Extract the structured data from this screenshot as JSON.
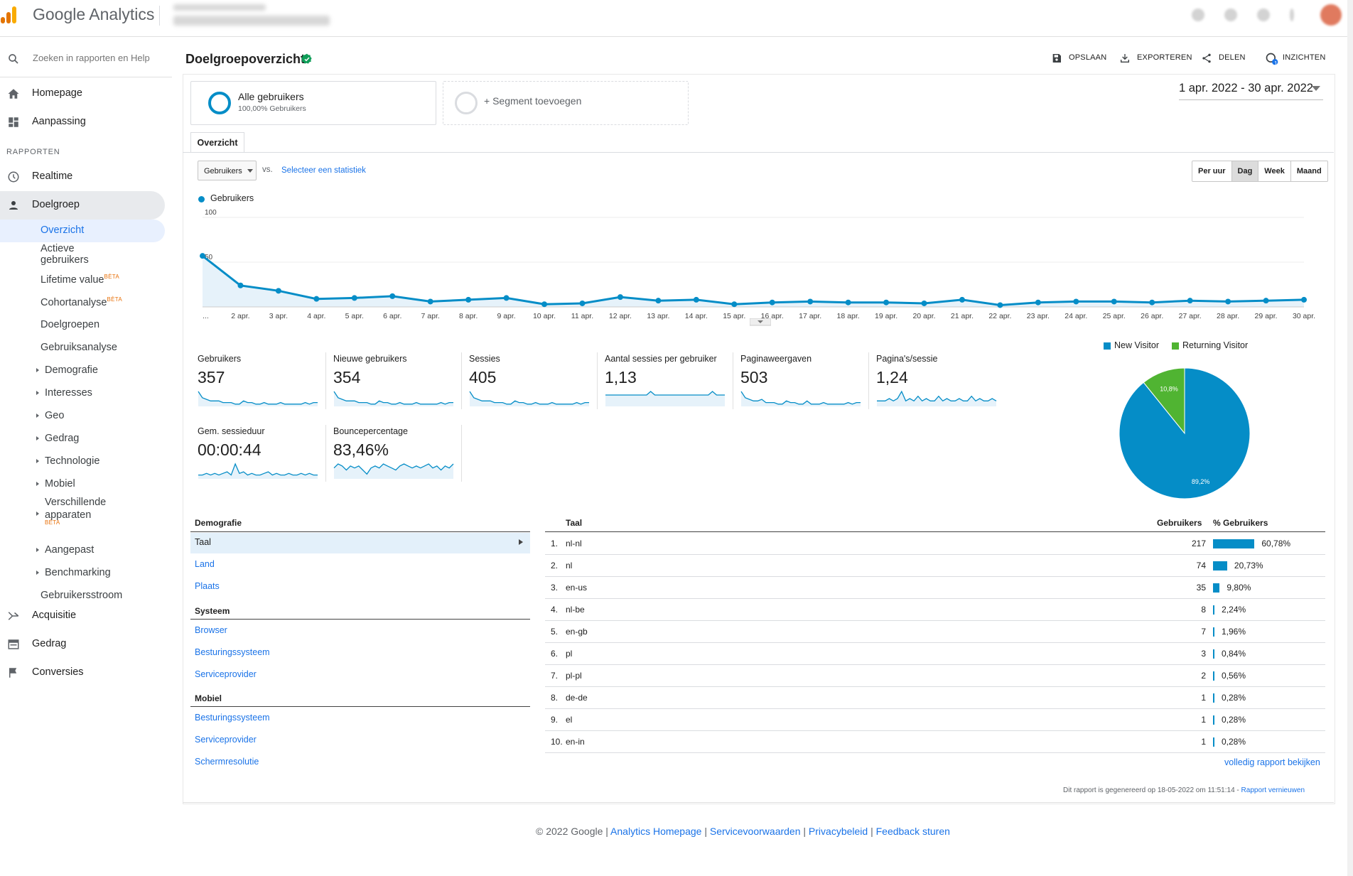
{
  "app": {
    "title": "Google Analytics"
  },
  "search": {
    "placeholder": "Zoeken in rapporten en Help"
  },
  "sidebar": {
    "top": [
      {
        "label": "Homepage",
        "icon": "home-icon"
      },
      {
        "label": "Aanpassing",
        "icon": "dashboard-icon"
      }
    ],
    "section_label": "RAPPORTEN",
    "reports": [
      {
        "label": "Realtime",
        "icon": "clock-icon"
      },
      {
        "label": "Doelgroep",
        "icon": "person-icon"
      }
    ],
    "audience_sub": [
      {
        "label": "Overzicht"
      },
      {
        "label": "Actieve",
        "label2": "gebruikers"
      },
      {
        "label": "Lifetime value",
        "badge": "BÈTA"
      },
      {
        "label": "Cohortanalyse",
        "badge": "BÈTA"
      },
      {
        "label": "Doelgroepen"
      },
      {
        "label": "Gebruiksanalyse"
      },
      {
        "label": "Demografie"
      },
      {
        "label": "Interesses"
      },
      {
        "label": "Geo"
      },
      {
        "label": "Gedrag"
      },
      {
        "label": "Technologie"
      },
      {
        "label": "Mobiel"
      },
      {
        "label": "Verschillende",
        "label2": "apparaten",
        "badge": "BÈTA"
      },
      {
        "label": "Aangepast"
      },
      {
        "label": "Benchmarking"
      },
      {
        "label": "Gebruikersstroom"
      }
    ],
    "bottom": [
      {
        "label": "Acquisitie",
        "icon": "acquisition-icon"
      },
      {
        "label": "Gedrag",
        "icon": "behavior-icon"
      },
      {
        "label": "Conversies",
        "icon": "flag-icon"
      }
    ]
  },
  "header": {
    "title": "Doelgroepoverzicht",
    "save": "OPSLAAN",
    "export": "EXPORTEREN",
    "share": "DELEN",
    "insights": "INZICHTEN",
    "insights_count": "1"
  },
  "segments": {
    "segment1_name": "Alle gebruikers",
    "segment1_sub": "100,00% Gebruikers",
    "add_segment": "+ Segment toevoegen"
  },
  "date_range": "1 apr. 2022 - 30 apr. 2022",
  "tabs": {
    "overview": "Overzicht"
  },
  "chart_controls": {
    "metric": "Gebruikers",
    "vs": "vs.",
    "select_metric": "Selecteer een statistiek",
    "granularity": [
      "Per uur",
      "Dag",
      "Week",
      "Maand"
    ],
    "selected": "Dag"
  },
  "colors": {
    "accent": "#058dc7",
    "returning": "#50b432",
    "link": "#1a73e8"
  },
  "chart_data": [
    {
      "type": "line",
      "series": [
        {
          "name": "Gebruikers",
          "values": [
            57,
            24,
            18,
            9,
            10,
            12,
            6,
            8,
            10,
            3,
            4,
            11,
            7,
            8,
            3,
            5,
            6,
            5,
            5,
            4,
            8,
            2,
            5,
            6,
            6,
            5,
            7,
            6,
            7,
            8
          ]
        }
      ],
      "x_labels": [
        "...",
        "2 apr.",
        "3 apr.",
        "4 apr.",
        "5 apr.",
        "6 apr.",
        "7 apr.",
        "8 apr.",
        "9 apr.",
        "10 apr.",
        "11 apr.",
        "12 apr.",
        "13 apr.",
        "14 apr.",
        "15 apr.",
        "16 apr.",
        "17 apr.",
        "18 apr.",
        "19 apr.",
        "20 apr.",
        "21 apr.",
        "22 apr.",
        "23 apr.",
        "24 apr.",
        "25 apr.",
        "26 apr.",
        "27 apr.",
        "28 apr.",
        "29 apr.",
        "30 apr."
      ],
      "y_ticks": [
        "100",
        "50"
      ],
      "ylim": [
        0,
        100
      ],
      "grid": true
    },
    {
      "type": "pie",
      "categories": [
        "New Visitor",
        "Returning Visitor"
      ],
      "values": [
        89.2,
        10.8
      ],
      "data_labels": [
        "89,2%",
        "10,8%"
      ],
      "legend": "top"
    }
  ],
  "kpis": [
    {
      "label": "Gebruikers",
      "value": "357",
      "spark": [
        9,
        5,
        4,
        3,
        3,
        3,
        2,
        2,
        2,
        1,
        1,
        3,
        2,
        2,
        1,
        1,
        2,
        1,
        1,
        1,
        2,
        1,
        1,
        1,
        1,
        1,
        2,
        1,
        2,
        2
      ]
    },
    {
      "label": "Nieuwe gebruikers",
      "value": "354",
      "spark": [
        9,
        5,
        4,
        3,
        3,
        3,
        2,
        2,
        2,
        1,
        1,
        3,
        2,
        2,
        1,
        1,
        2,
        1,
        1,
        1,
        2,
        1,
        1,
        1,
        1,
        1,
        2,
        1,
        2,
        2
      ]
    },
    {
      "label": "Sessies",
      "value": "405",
      "spark": [
        9,
        5,
        4,
        3,
        3,
        3,
        2,
        2,
        2,
        1,
        1,
        3,
        2,
        2,
        1,
        1,
        2,
        1,
        1,
        1,
        2,
        1,
        1,
        1,
        1,
        1,
        2,
        1,
        2,
        2
      ]
    },
    {
      "label": "Aantal sessies per gebruiker",
      "value": "1,13",
      "spark": [
        3,
        3,
        3,
        3,
        3,
        3,
        3,
        3,
        3,
        3,
        3,
        4,
        3,
        3,
        3,
        3,
        3,
        3,
        3,
        3,
        3,
        3,
        3,
        3,
        3,
        3,
        4,
        3,
        3,
        3
      ]
    },
    {
      "label": "Paginaweergaven",
      "value": "503",
      "spark": [
        9,
        5,
        4,
        3,
        3,
        4,
        2,
        2,
        2,
        1,
        1,
        3,
        2,
        2,
        1,
        1,
        3,
        1,
        1,
        1,
        2,
        1,
        1,
        1,
        1,
        1,
        2,
        1,
        2,
        2
      ]
    },
    {
      "label": "Pagina's/sessie",
      "value": "1,24",
      "spark": [
        2,
        2,
        2,
        3,
        2,
        3,
        6,
        2,
        3,
        2,
        4,
        2,
        3,
        2,
        2,
        4,
        2,
        3,
        2,
        2,
        3,
        2,
        2,
        4,
        2,
        3,
        2,
        2,
        3,
        2
      ]
    },
    {
      "label": "Gem. sessieduur",
      "value": "00:00:44",
      "spark": [
        2,
        2,
        3,
        2,
        3,
        2,
        3,
        4,
        2,
        9,
        3,
        4,
        2,
        3,
        2,
        2,
        3,
        4,
        2,
        3,
        2,
        2,
        3,
        2,
        2,
        3,
        2,
        3,
        2,
        2
      ]
    },
    {
      "label": "Bouncepercentage",
      "value": "83,46%",
      "spark": [
        5,
        7,
        6,
        4,
        6,
        5,
        6,
        4,
        2,
        5,
        6,
        5,
        7,
        6,
        5,
        4,
        6,
        7,
        6,
        5,
        6,
        5,
        6,
        7,
        5,
        6,
        4,
        6,
        5,
        7
      ]
    }
  ],
  "demografie": {
    "title": "Demografie",
    "items": [
      "Taal",
      "Land",
      "Plaats"
    ],
    "systeem_title": "Systeem",
    "systeem_items": [
      "Browser",
      "Besturingssysteem",
      "Serviceprovider"
    ],
    "mobiel_title": "Mobiel",
    "mobiel_items": [
      "Besturingssysteem",
      "Serviceprovider",
      "Schermresolutie"
    ]
  },
  "language_table": {
    "col_lang": "Taal",
    "col_users": "Gebruikers",
    "col_pct": "% Gebruikers",
    "rows": [
      {
        "rank": "1.",
        "lang": "nl-nl",
        "users": "217",
        "pct": "60,78%",
        "frac": 0.6078
      },
      {
        "rank": "2.",
        "lang": "nl",
        "users": "74",
        "pct": "20,73%",
        "frac": 0.2073
      },
      {
        "rank": "3.",
        "lang": "en-us",
        "users": "35",
        "pct": "9,80%",
        "frac": 0.098
      },
      {
        "rank": "4.",
        "lang": "nl-be",
        "users": "8",
        "pct": "2,24%",
        "frac": 0.0224
      },
      {
        "rank": "5.",
        "lang": "en-gb",
        "users": "7",
        "pct": "1,96%",
        "frac": 0.0196
      },
      {
        "rank": "6.",
        "lang": "pl",
        "users": "3",
        "pct": "0,84%",
        "frac": 0.0084
      },
      {
        "rank": "7.",
        "lang": "pl-pl",
        "users": "2",
        "pct": "0,56%",
        "frac": 0.0056
      },
      {
        "rank": "8.",
        "lang": "de-de",
        "users": "1",
        "pct": "0,28%",
        "frac": 0.0028
      },
      {
        "rank": "9.",
        "lang": "el",
        "users": "1",
        "pct": "0,28%",
        "frac": 0.0028
      },
      {
        "rank": "10.",
        "lang": "en-in",
        "users": "1",
        "pct": "0,28%",
        "frac": 0.0028
      }
    ],
    "full_report": "volledig rapport bekijken"
  },
  "report_note": {
    "text": "Dit rapport is gegenereerd op 18-05-2022 om 11:51:14 - ",
    "refresh": "Rapport vernieuwen"
  },
  "footer": {
    "copyright": "© 2022 Google",
    "sep": "|",
    "links": [
      "Analytics Homepage",
      "Servicevoorwaarden",
      "Privacybeleid",
      "Feedback sturen"
    ]
  }
}
